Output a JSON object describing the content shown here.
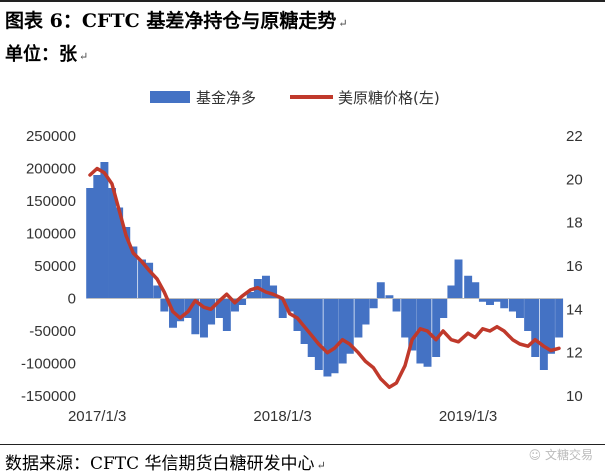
{
  "header": {
    "title": "图表 6：CFTC 基差净持仓与原糖走势",
    "unit": "单位：张",
    "return_mark": "↵"
  },
  "footer": {
    "source": "数据来源：CFTC  华信期货白糖研发中心",
    "watermark": "文糖交易"
  },
  "colors": {
    "bar": "#4472C4",
    "line": "#C0392B"
  },
  "chart_data": {
    "type": "bar",
    "legend": [
      "基金净多",
      "美原糖价格(左)"
    ],
    "x_tick_labels": [
      "2017/1/3",
      "2018/1/3",
      "2019/1/3"
    ],
    "x_ticks": [
      {
        "label": "2017/1/3",
        "value": "2017-01-03"
      },
      {
        "label": "2018/1/3",
        "value": "2018-01-03"
      },
      {
        "label": "2019/1/3",
        "value": "2019-01-03"
      }
    ],
    "left_axis": {
      "ylim": [
        -150000,
        250000
      ],
      "ticks": [
        "250000",
        "200000",
        "150000",
        "100000",
        "50000",
        "0",
        "-50000",
        "-100000",
        "-150000"
      ]
    },
    "right_axis": {
      "ylim": [
        10,
        22
      ],
      "ticks": [
        "22",
        "20",
        "18",
        "16",
        "14",
        "12",
        "10"
      ]
    },
    "series": [
      {
        "name": "基金净多",
        "type": "bar",
        "axis": "left",
        "x": [
          "2016-12-20",
          "2017-01-03",
          "2017-01-17",
          "2017-02-01",
          "2017-02-15",
          "2017-03-01",
          "2017-03-15",
          "2017-04-01",
          "2017-04-15",
          "2017-05-01",
          "2017-05-15",
          "2017-06-01",
          "2017-06-15",
          "2017-07-01",
          "2017-07-15",
          "2017-08-01",
          "2017-08-15",
          "2017-09-01",
          "2017-09-15",
          "2017-10-01",
          "2017-10-15",
          "2017-11-01",
          "2017-11-15",
          "2017-12-01",
          "2017-12-15",
          "2018-01-03",
          "2018-01-17",
          "2018-02-01",
          "2018-02-15",
          "2018-03-01",
          "2018-03-15",
          "2018-04-01",
          "2018-04-15",
          "2018-05-01",
          "2018-05-15",
          "2018-06-01",
          "2018-06-15",
          "2018-07-01",
          "2018-07-15",
          "2018-08-01",
          "2018-08-15",
          "2018-09-01",
          "2018-09-15",
          "2018-10-01",
          "2018-10-15",
          "2018-11-01",
          "2018-11-15",
          "2018-12-01",
          "2018-12-15",
          "2019-01-03",
          "2019-01-17",
          "2019-02-01",
          "2019-02-15",
          "2019-03-01",
          "2019-03-15",
          "2019-04-01",
          "2019-04-15",
          "2019-05-01",
          "2019-05-15",
          "2019-06-01",
          "2019-06-15",
          "2019-07-01"
        ],
        "values": [
          170000,
          190000,
          210000,
          170000,
          140000,
          110000,
          80000,
          60000,
          55000,
          20000,
          -20000,
          -45000,
          -35000,
          -30000,
          -55000,
          -60000,
          -40000,
          -30000,
          -50000,
          -20000,
          -10000,
          10000,
          30000,
          35000,
          20000,
          -30000,
          -20000,
          -50000,
          -70000,
          -90000,
          -110000,
          -120000,
          -115000,
          -100000,
          -85000,
          -60000,
          -40000,
          -15000,
          25000,
          5000,
          -20000,
          -60000,
          -80000,
          -100000,
          -105000,
          -90000,
          -30000,
          20000,
          60000,
          35000,
          25000,
          -5000,
          -10000,
          -5000,
          -15000,
          -20000,
          -30000,
          -50000,
          -90000,
          -110000,
          -85000,
          -60000
        ]
      },
      {
        "name": "美原糖价格(左)",
        "type": "line",
        "axis": "right",
        "x": [
          "2016-12-20",
          "2017-01-03",
          "2017-01-17",
          "2017-02-01",
          "2017-02-15",
          "2017-03-01",
          "2017-03-15",
          "2017-04-01",
          "2017-04-15",
          "2017-05-01",
          "2017-05-15",
          "2017-06-01",
          "2017-06-15",
          "2017-07-01",
          "2017-07-15",
          "2017-08-01",
          "2017-08-15",
          "2017-09-01",
          "2017-09-15",
          "2017-10-01",
          "2017-10-15",
          "2017-11-01",
          "2017-11-15",
          "2017-12-01",
          "2017-12-15",
          "2018-01-03",
          "2018-01-17",
          "2018-02-01",
          "2018-02-15",
          "2018-03-01",
          "2018-03-15",
          "2018-04-01",
          "2018-04-15",
          "2018-05-01",
          "2018-05-15",
          "2018-06-01",
          "2018-06-15",
          "2018-07-01",
          "2018-07-15",
          "2018-08-01",
          "2018-08-15",
          "2018-09-01",
          "2018-09-15",
          "2018-10-01",
          "2018-10-15",
          "2018-11-01",
          "2018-11-15",
          "2018-12-01",
          "2018-12-15",
          "2019-01-03",
          "2019-01-17",
          "2019-02-01",
          "2019-02-15",
          "2019-03-01",
          "2019-03-15",
          "2019-04-01",
          "2019-04-15",
          "2019-05-01",
          "2019-05-15",
          "2019-06-01",
          "2019-06-15",
          "2019-07-01"
        ],
        "values": [
          20.2,
          20.5,
          20.3,
          19.8,
          18.6,
          17.4,
          16.6,
          16.2,
          15.8,
          15.4,
          14.8,
          13.9,
          13.6,
          13.9,
          14.4,
          14.1,
          14.0,
          14.4,
          14.7,
          14.3,
          14.6,
          14.9,
          15.0,
          14.8,
          14.7,
          14.5,
          13.8,
          13.6,
          13.2,
          12.8,
          12.4,
          12.0,
          12.2,
          12.6,
          12.4,
          12.0,
          11.6,
          11.3,
          10.8,
          10.4,
          10.6,
          11.4,
          12.6,
          13.1,
          13.0,
          12.6,
          13.0,
          12.6,
          12.5,
          12.9,
          12.7,
          13.1,
          13.0,
          13.2,
          13.0,
          12.6,
          12.4,
          12.3,
          12.6,
          12.3,
          12.1,
          12.2
        ]
      }
    ],
    "grid": false,
    "legend_position": "top-center"
  }
}
